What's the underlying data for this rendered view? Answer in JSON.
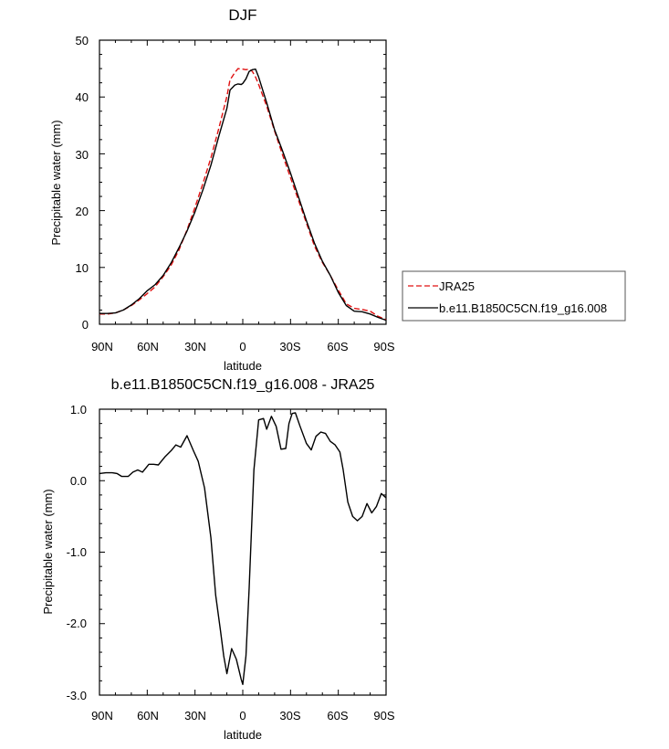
{
  "chart_data": [
    {
      "type": "line",
      "title": "DJF",
      "xlabel": "latitude",
      "ylabel": "Precipitable water (mm)",
      "xlim": [
        90,
        -90
      ],
      "ylim": [
        0,
        50
      ],
      "xticks": [
        90,
        60,
        30,
        0,
        -30,
        -60,
        -90
      ],
      "xtick_labels": [
        "90N",
        "60N",
        "30N",
        "0",
        "30S",
        "60S",
        "90S"
      ],
      "yticks": [
        0,
        10,
        20,
        30,
        40,
        50
      ],
      "ytick_labels": [
        "0",
        "10",
        "20",
        "30",
        "40",
        "50"
      ],
      "legend_position": "right",
      "series": [
        {
          "name": "JRA25",
          "color": "#e01010",
          "dash": "dashed",
          "x": [
            90,
            85,
            80,
            75,
            70,
            65,
            60,
            55,
            50,
            45,
            40,
            35,
            30,
            25,
            20,
            15,
            10,
            8,
            5,
            3,
            1,
            0,
            -2,
            -4,
            -6,
            -8,
            -10,
            -15,
            -20,
            -25,
            -30,
            -35,
            -40,
            -45,
            -50,
            -55,
            -60,
            -65,
            -70,
            -75,
            -80,
            -85,
            -90
          ],
          "y": [
            1.8,
            1.8,
            2.0,
            2.5,
            3.3,
            4.3,
            5.4,
            6.6,
            8.4,
            10.4,
            13.1,
            16.6,
            20.6,
            24.8,
            29.3,
            34.5,
            40.1,
            43.0,
            44.3,
            45.0,
            44.9,
            44.9,
            44.8,
            44.9,
            44.5,
            43.5,
            42.2,
            38.4,
            34.0,
            29.8,
            25.8,
            21.8,
            17.8,
            13.8,
            10.9,
            8.6,
            6.0,
            3.6,
            2.8,
            2.6,
            2.3,
            1.4,
            0.8
          ]
        },
        {
          "name": "b.e11.B1850C5CN.f19_g16.008",
          "color": "#000000",
          "dash": "solid",
          "x": [
            90,
            85,
            80,
            75,
            70,
            65,
            60,
            55,
            50,
            45,
            40,
            35,
            30,
            25,
            20,
            15,
            10,
            8,
            5,
            3,
            1,
            0,
            -2,
            -4,
            -6,
            -8,
            -10,
            -15,
            -20,
            -25,
            -30,
            -35,
            -40,
            -45,
            -50,
            -55,
            -60,
            -65,
            -70,
            -75,
            -80,
            -85,
            -90
          ],
          "y": [
            1.9,
            1.9,
            2.0,
            2.5,
            3.4,
            4.5,
            5.9,
            7.0,
            8.6,
            10.8,
            13.5,
            16.4,
            19.8,
            23.7,
            28.0,
            33.1,
            38.0,
            41.2,
            42.1,
            42.3,
            42.2,
            42.4,
            43.2,
            44.5,
            44.8,
            44.9,
            43.5,
            39.0,
            34.2,
            30.5,
            26.6,
            22.4,
            18.2,
            14.3,
            11.1,
            8.6,
            5.6,
            3.3,
            2.3,
            2.2,
            1.8,
            1.2,
            0.7
          ]
        }
      ]
    },
    {
      "type": "line",
      "title": "b.e11.B1850C5CN.f19_g16.008 - JRA25",
      "xlabel": "latitude",
      "ylabel": "Precipitable water (mm)",
      "xlim": [
        90,
        -90
      ],
      "ylim": [
        -3.0,
        1.0
      ],
      "xticks": [
        90,
        60,
        30,
        0,
        -30,
        -60,
        -90
      ],
      "xtick_labels": [
        "90N",
        "60N",
        "30N",
        "0",
        "30S",
        "60S",
        "90S"
      ],
      "yticks": [
        1.0,
        0.0,
        -1.0,
        -2.0,
        -3.0
      ],
      "ytick_labels": [
        "1.0",
        "0.0",
        "-1.0",
        "-2.0",
        "-3.0"
      ],
      "series": [
        {
          "color": "#000000",
          "dash": "solid",
          "x": [
            90,
            86,
            82,
            79,
            76,
            72,
            69,
            66,
            63,
            59,
            56,
            53,
            49,
            45,
            42,
            39,
            35,
            31,
            28,
            24,
            20,
            17,
            14,
            12,
            10,
            7,
            4,
            1,
            0,
            -2,
            -4,
            -7,
            -10,
            -13,
            -15,
            -18,
            -21,
            -24,
            -27,
            -29,
            -31,
            -33,
            -36,
            -40,
            -43,
            -46,
            -49,
            -52,
            -55,
            -58,
            -61,
            -63,
            -66,
            -69,
            -72,
            -75,
            -78,
            -81,
            -84,
            -87,
            -90
          ],
          "y": [
            0.1,
            0.11,
            0.11,
            0.1,
            0.06,
            0.06,
            0.12,
            0.15,
            0.12,
            0.23,
            0.23,
            0.22,
            0.33,
            0.42,
            0.5,
            0.47,
            0.63,
            0.42,
            0.27,
            -0.1,
            -0.8,
            -1.6,
            -2.1,
            -2.45,
            -2.7,
            -2.35,
            -2.5,
            -2.78,
            -2.85,
            -2.45,
            -1.5,
            0.15,
            0.85,
            0.87,
            0.72,
            0.9,
            0.76,
            0.44,
            0.45,
            0.8,
            0.94,
            0.95,
            0.76,
            0.52,
            0.43,
            0.62,
            0.68,
            0.66,
            0.55,
            0.5,
            0.4,
            0.16,
            -0.3,
            -0.5,
            -0.56,
            -0.5,
            -0.32,
            -0.45,
            -0.36,
            -0.18,
            -0.24
          ]
        }
      ]
    }
  ]
}
